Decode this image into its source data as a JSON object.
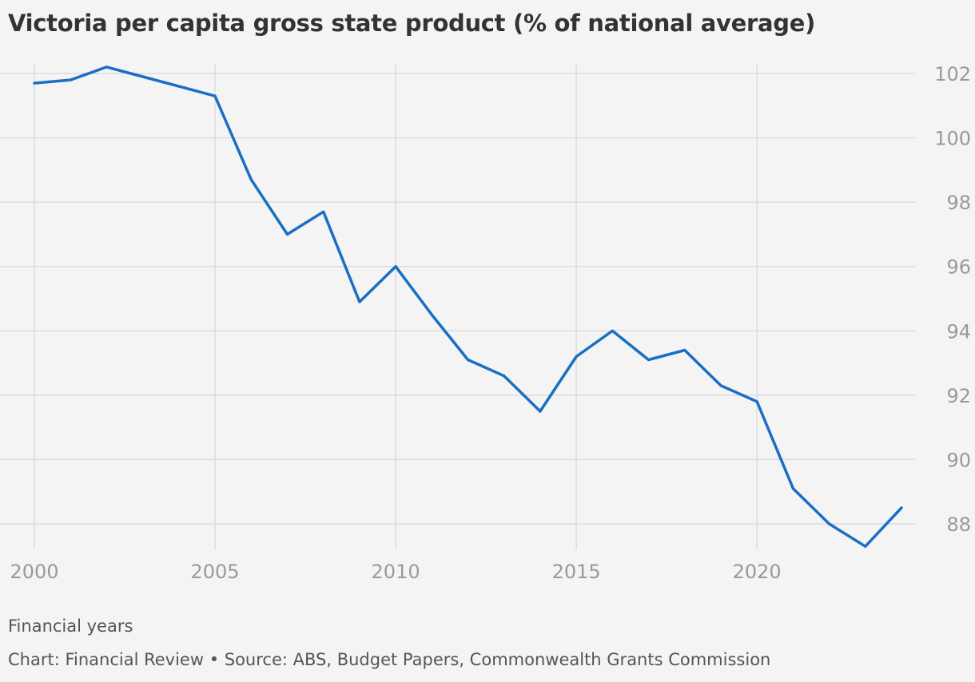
{
  "title": "Victoria per capita gross state product (% of national average)",
  "chart_data": {
    "type": "line",
    "title": "Victoria per capita gross state product (% of national average)",
    "xlabel": "Financial years",
    "ylabel": "",
    "xlim": [
      2000,
      2024
    ],
    "ylim": [
      87.3,
      102.2
    ],
    "x_ticks": [
      2000,
      2005,
      2010,
      2015,
      2020
    ],
    "y_ticks": [
      88,
      90,
      92,
      94,
      96,
      98,
      100,
      102
    ],
    "y_axis_position": "right",
    "grid": true,
    "series": [
      {
        "color": "#1a6ec5",
        "x": [
          2000,
          2001,
          2002,
          2003,
          2004,
          2005,
          2006,
          2007,
          2008,
          2009,
          2010,
          2011,
          2012,
          2013,
          2014,
          2015,
          2016,
          2017,
          2018,
          2019,
          2020,
          2021,
          2022,
          2023,
          2024
        ],
        "values": [
          101.7,
          101.8,
          102.2,
          101.9,
          101.6,
          101.3,
          98.7,
          97.0,
          97.7,
          94.9,
          96.0,
          94.5,
          93.1,
          92.6,
          91.5,
          93.2,
          94.0,
          93.1,
          93.4,
          92.3,
          91.8,
          89.1,
          88.0,
          87.3,
          88.5
        ]
      }
    ]
  },
  "source": "Chart: Financial Review • Source: ABS, Budget Papers, Commonwealth Grants Commission"
}
